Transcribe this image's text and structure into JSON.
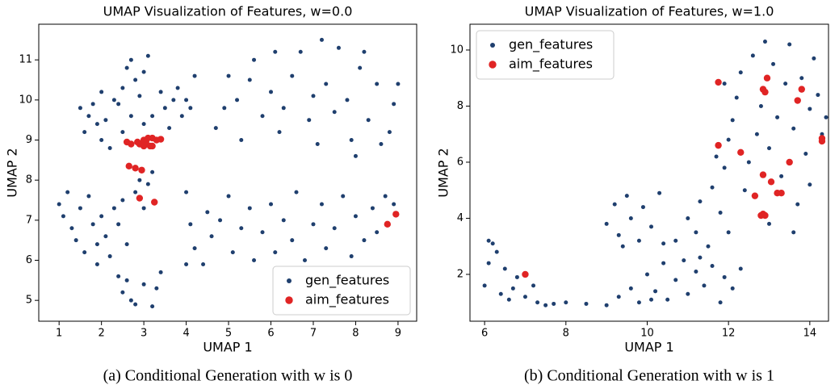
{
  "chart_data": [
    {
      "type": "scatter",
      "title": "UMAP Visualization of Features, w=0.0",
      "x_label": "UMAP 1",
      "y_label": "UMAP 2",
      "caption": "(a) Conditional Generation with w is 0",
      "legend": "lower right",
      "xlim": [
        0.52,
        9.44
      ],
      "ylim": [
        4.48,
        11.89
      ],
      "xticks": [
        1,
        2,
        3,
        4,
        5,
        6,
        7,
        8,
        9
      ],
      "yticks": [
        5,
        6,
        7,
        8,
        9,
        10,
        11
      ],
      "series": [
        {
          "name": "gen_features",
          "color": "#1f3f6e",
          "x": [
            1.5,
            1.7,
            1.9,
            2.1,
            2.0,
            2.2,
            2.4,
            2.5,
            2.6,
            2.7,
            2.8,
            2.9,
            3.0,
            3.1,
            2.3,
            2.0,
            1.8,
            2.7,
            3.0,
            3.2,
            2.5,
            1.6,
            3.5,
            3.7,
            3.8,
            3.9,
            4.0,
            4.1,
            3.6,
            4.2,
            3.4,
            4.7,
            5.0,
            5.2,
            5.5,
            5.6,
            5.8,
            6.0,
            6.2,
            6.3,
            6.5,
            6.7,
            6.9,
            7.0,
            7.2,
            7.3,
            7.5,
            7.6,
            7.8,
            7.9,
            8.1,
            8.2,
            8.3,
            8.5,
            8.6,
            8.8,
            8.9,
            9.0,
            5.3,
            6.1,
            4.9,
            7.1,
            8.0,
            2.8,
            2.9,
            3.1,
            3.0,
            3.2,
            1.0,
            1.1,
            1.3,
            1.4,
            1.5,
            1.6,
            1.7,
            1.8,
            1.9,
            2.0,
            2.1,
            2.2,
            2.3,
            2.4,
            2.5,
            1.2,
            2.6,
            1.9,
            2.4,
            2.5,
            2.7,
            2.8,
            3.0,
            3.2,
            3.3,
            3.4,
            2.6,
            4.0,
            4.1,
            4.2,
            4.0,
            4.5,
            4.6,
            4.8,
            5.0,
            5.1,
            5.3,
            5.5,
            5.6,
            5.8,
            6.0,
            6.1,
            6.3,
            6.5,
            6.6,
            6.8,
            7.0,
            7.2,
            7.3,
            7.5,
            7.7,
            7.9,
            8.0,
            8.2,
            8.4,
            8.5,
            8.7,
            8.9,
            4.4
          ],
          "y": [
            9.8,
            9.6,
            9.4,
            9.5,
            9.0,
            8.8,
            9.9,
            10.3,
            10.8,
            11.0,
            10.5,
            10.1,
            10.7,
            11.1,
            10.0,
            10.2,
            9.9,
            9.6,
            9.4,
            9.6,
            9.2,
            9.2,
            9.8,
            10.0,
            10.3,
            9.6,
            10.0,
            9.8,
            9.3,
            10.6,
            10.2,
            9.3,
            10.6,
            10.0,
            10.5,
            11.0,
            9.6,
            10.2,
            9.2,
            9.8,
            10.6,
            11.2,
            9.5,
            10.1,
            11.5,
            10.4,
            9.7,
            11.3,
            10.0,
            9.0,
            10.8,
            11.2,
            9.5,
            10.4,
            8.9,
            9.2,
            9.9,
            10.4,
            9.0,
            11.2,
            9.8,
            8.9,
            8.6,
            7.7,
            8.0,
            7.9,
            7.3,
            8.2,
            7.4,
            7.1,
            6.8,
            6.5,
            7.3,
            6.2,
            7.6,
            6.9,
            6.4,
            7.1,
            6.6,
            6.1,
            7.3,
            6.9,
            7.5,
            7.7,
            6.4,
            5.9,
            5.6,
            5.2,
            5.0,
            4.9,
            5.4,
            4.85,
            5.3,
            5.7,
            5.5,
            7.7,
            6.9,
            6.3,
            5.9,
            7.2,
            6.6,
            7.0,
            7.6,
            6.2,
            6.8,
            7.3,
            6.0,
            6.7,
            7.4,
            6.2,
            7.0,
            6.5,
            7.7,
            6.0,
            6.9,
            7.4,
            6.3,
            6.8,
            7.6,
            6.1,
            7.1,
            6.5,
            7.3,
            6.7,
            7.6,
            7.4,
            5.9
          ]
        },
        {
          "name": "aim_features",
          "color": "#e02424",
          "x": [
            2.6,
            2.7,
            2.9,
            3.0,
            3.1,
            3.2,
            3.3,
            3.0,
            3.15,
            3.2,
            2.65,
            2.8,
            2.95,
            2.9,
            3.25,
            8.75,
            8.95,
            3.4,
            2.85,
            3.05
          ],
          "y": [
            8.95,
            8.9,
            8.9,
            9.0,
            9.05,
            9.05,
            9.0,
            8.85,
            8.85,
            8.85,
            8.35,
            8.3,
            8.25,
            7.55,
            7.45,
            6.9,
            7.15,
            9.02,
            8.95,
            8.95
          ]
        }
      ]
    },
    {
      "type": "scatter",
      "title": "UMAP Visualization of Features, w=1.0",
      "x_label": "UMAP 1",
      "y_label": "UMAP 2",
      "caption": "(b) Conditional Generation with w is 1",
      "legend": "upper left",
      "xlim": [
        5.64,
        14.46
      ],
      "ylim": [
        0.33,
        10.92
      ],
      "xticks": [
        6,
        8,
        10,
        12,
        14
      ],
      "yticks": [
        2,
        4,
        6,
        8,
        10
      ],
      "series": [
        {
          "name": "gen_features",
          "color": "#1f3f6e",
          "x": [
            6.0,
            6.1,
            6.2,
            6.3,
            6.4,
            6.5,
            6.7,
            6.8,
            7.0,
            7.2,
            7.3,
            7.5,
            6.1,
            6.6,
            7.7,
            8.0,
            8.5,
            9.0,
            9.3,
            9.6,
            9.8,
            10.0,
            10.2,
            10.4,
            10.5,
            10.7,
            10.9,
            11.0,
            11.2,
            11.4,
            11.6,
            11.8,
            11.9,
            12.1,
            12.3,
            10.1,
            11.3,
            9.0,
            9.2,
            9.3,
            9.5,
            9.6,
            9.8,
            9.9,
            10.1,
            10.3,
            10.4,
            9.4,
            10.7,
            11.0,
            11.2,
            11.3,
            11.5,
            11.6,
            11.8,
            11.9,
            12.0,
            12.0,
            12.1,
            12.2,
            12.3,
            12.4,
            12.5,
            12.6,
            12.7,
            12.8,
            12.9,
            13.0,
            13.0,
            13.1,
            13.2,
            13.3,
            13.4,
            13.5,
            13.6,
            13.7,
            13.8,
            13.9,
            14.0,
            14.1,
            14.2,
            14.3,
            14.4,
            14.5,
            13.6,
            14.0,
            11.7,
            11.9
          ],
          "y": [
            1.6,
            2.4,
            3.1,
            2.8,
            1.3,
            2.2,
            1.5,
            1.9,
            1.2,
            1.6,
            1.0,
            0.9,
            3.2,
            1.1,
            0.95,
            1.0,
            0.95,
            0.9,
            1.2,
            1.5,
            1.0,
            2.0,
            1.4,
            2.4,
            1.1,
            1.8,
            2.5,
            1.3,
            2.1,
            1.6,
            2.3,
            1.0,
            1.9,
            1.5,
            2.2,
            1.1,
            2.6,
            3.8,
            4.5,
            3.4,
            4.8,
            4.0,
            3.2,
            4.4,
            3.7,
            4.9,
            3.1,
            3.0,
            3.2,
            4.0,
            3.5,
            4.6,
            3.0,
            5.1,
            4.2,
            5.8,
            6.8,
            3.5,
            7.5,
            8.3,
            9.2,
            5.0,
            6.0,
            9.8,
            7.0,
            8.0,
            10.3,
            6.5,
            3.8,
            9.5,
            7.6,
            5.5,
            8.8,
            10.2,
            7.2,
            4.5,
            9.0,
            6.3,
            7.9,
            9.7,
            8.4,
            7.0,
            7.6,
            7.3,
            3.5,
            5.2,
            6.2,
            8.8
          ]
        },
        {
          "name": "aim_features",
          "color": "#e02424",
          "x": [
            7.0,
            11.75,
            12.95,
            12.85,
            12.9,
            13.8,
            13.7,
            11.75,
            12.3,
            14.3,
            14.3,
            13.5,
            12.85,
            13.05,
            12.65,
            13.3,
            13.2,
            12.85,
            12.9,
            12.8
          ],
          "y": [
            2.0,
            8.85,
            9.0,
            8.6,
            8.5,
            8.6,
            8.2,
            6.6,
            6.35,
            6.75,
            6.85,
            6.0,
            5.55,
            5.3,
            4.8,
            4.9,
            4.9,
            4.15,
            4.1,
            4.1
          ]
        }
      ]
    }
  ]
}
